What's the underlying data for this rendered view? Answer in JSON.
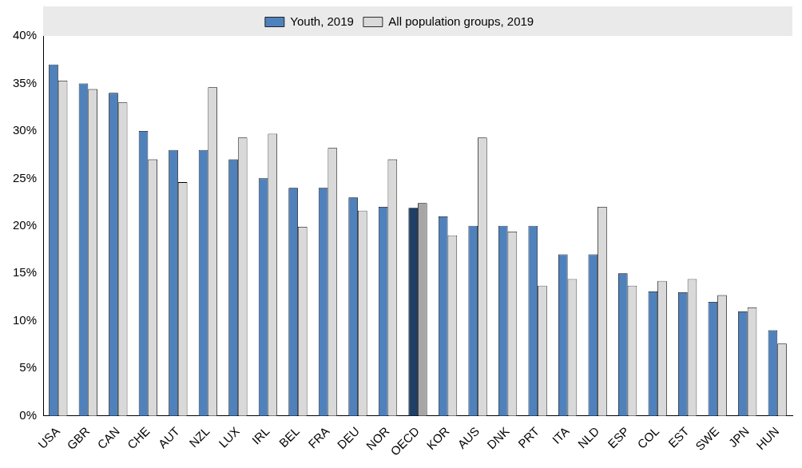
{
  "chart_data": {
    "type": "bar",
    "categories": [
      "USA",
      "GBR",
      "CAN",
      "CHE",
      "AUT",
      "NZL",
      "LUX",
      "IRL",
      "BEL",
      "FRA",
      "DEU",
      "NOR",
      "OECD",
      "KOR",
      "AUS",
      "DNK",
      "PRT",
      "ITA",
      "NLD",
      "ESP",
      "COL",
      "EST",
      "SWE",
      "JPN",
      "HUN"
    ],
    "series": [
      {
        "name": "Youth, 2019",
        "color": "#4f81bd",
        "colors": [
          "#4f81bd",
          "#4f81bd",
          "#4f81bd",
          "#4f81bd",
          "#4f81bd",
          "#4f81bd",
          "#4f81bd",
          "#4f81bd",
          "#4f81bd",
          "#4f81bd",
          "#4f81bd",
          "#4f81bd",
          "#1f3f66",
          "#4f81bd",
          "#4f81bd",
          "#4f81bd",
          "#4f81bd",
          "#4f81bd",
          "#4f81bd",
          "#4f81bd",
          "#4f81bd",
          "#4f81bd",
          "#4f81bd",
          "#4f81bd",
          "#4f81bd"
        ],
        "values": [
          37,
          35,
          34,
          30,
          28,
          28,
          27,
          25,
          24,
          24,
          23,
          22,
          21.9,
          21,
          20,
          20,
          20,
          17,
          17,
          15,
          13.1,
          13,
          12,
          11,
          9
        ]
      },
      {
        "name": "All population groups, 2019",
        "color": "#d9d9d9",
        "colors": [
          "#d9d9d9",
          "#d9d9d9",
          "#d9d9d9",
          "#d9d9d9",
          "#d9d9d9",
          "#d9d9d9",
          "#d9d9d9",
          "#d9d9d9",
          "#d9d9d9",
          "#d9d9d9",
          "#d9d9d9",
          "#d9d9d9",
          "#a6a6a6",
          "#d9d9d9",
          "#d9d9d9",
          "#d9d9d9",
          "#d9d9d9",
          "#d9d9d9",
          "#d9d9d9",
          "#d9d9d9",
          "#d9d9d9",
          "#d9d9d9",
          "#d9d9d9",
          "#d9d9d9",
          "#d9d9d9"
        ],
        "values": [
          35.3,
          34.4,
          33,
          27,
          24.6,
          34.6,
          29.3,
          29.7,
          19.9,
          28.2,
          21.6,
          27,
          22.4,
          19,
          29.3,
          19.4,
          13.7,
          14.4,
          22,
          13.7,
          14.2,
          14.4,
          12.7,
          11.4,
          7.6
        ]
      }
    ],
    "ylim": [
      0,
      40
    ],
    "yticks": [
      {
        "value": 0,
        "label": "0%"
      },
      {
        "value": 5,
        "label": "5%"
      },
      {
        "value": 10,
        "label": "10%"
      },
      {
        "value": 15,
        "label": "15%"
      },
      {
        "value": 20,
        "label": "20%"
      },
      {
        "value": 25,
        "label": "25%"
      },
      {
        "value": 30,
        "label": "30%"
      },
      {
        "value": 35,
        "label": "35%"
      },
      {
        "value": 40,
        "label": "40%"
      }
    ],
    "legend": "top"
  }
}
